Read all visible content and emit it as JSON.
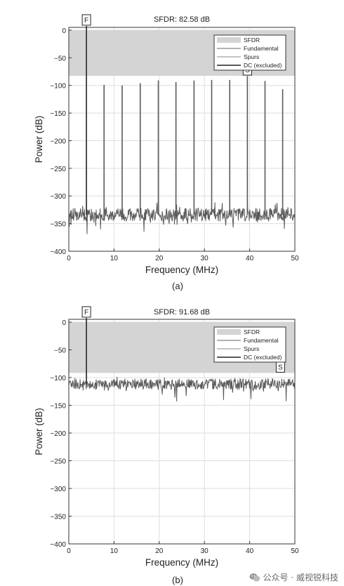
{
  "chart_data": [
    {
      "type": "line",
      "title": "SFDR:  82.58 dB",
      "caption": "(a)",
      "xlabel": "Frequency (MHz)",
      "ylabel": "Power (dB)",
      "xlim": [
        0,
        50
      ],
      "ylim": [
        -400,
        5
      ],
      "xticks": [
        0,
        10,
        20,
        30,
        40,
        50
      ],
      "yticks": [
        0,
        -50,
        -100,
        -150,
        -200,
        -250,
        -300,
        -350,
        -400
      ],
      "grid": true,
      "legend_position": "top-right",
      "legend": [
        "SFDR",
        "Fundamental",
        "Spurs",
        "DC (excluded)"
      ],
      "sfdr_band": [
        0,
        -82.58
      ],
      "noise_floor": {
        "mean": -334,
        "spread": 12
      },
      "fundamental": {
        "x": 3.9,
        "y": 0,
        "marker": "F"
      },
      "spurs": [
        {
          "x": 7.8,
          "y": -99
        },
        {
          "x": 11.8,
          "y": -100
        },
        {
          "x": 15.8,
          "y": -96
        },
        {
          "x": 19.8,
          "y": -91
        },
        {
          "x": 23.7,
          "y": -94
        },
        {
          "x": 27.7,
          "y": -91
        },
        {
          "x": 31.6,
          "y": -90
        },
        {
          "x": 35.6,
          "y": -90
        },
        {
          "x": 39.5,
          "y": -83
        },
        {
          "x": 43.4,
          "y": -92
        },
        {
          "x": 47.3,
          "y": -107
        }
      ],
      "spur_marker": {
        "x": 39.5,
        "label": "S"
      }
    },
    {
      "type": "line",
      "title": "SFDR:  91.68 dB",
      "caption": "(b)",
      "xlabel": "Frequency (MHz)",
      "ylabel": "Power (dB)",
      "xlim": [
        0,
        50
      ],
      "ylim": [
        -400,
        5
      ],
      "xticks": [
        0,
        10,
        20,
        30,
        40,
        50
      ],
      "yticks": [
        0,
        -50,
        -100,
        -150,
        -200,
        -250,
        -300,
        -350,
        -400
      ],
      "grid": true,
      "legend_position": "top-right",
      "legend": [
        "SFDR",
        "Fundamental",
        "Spurs",
        "DC (excluded)"
      ],
      "sfdr_band": [
        0,
        -91.68
      ],
      "noise_floor": {
        "mean": -112,
        "spread": 10
      },
      "fundamental": {
        "x": 3.9,
        "y": 0,
        "marker": "F"
      },
      "spurs": [],
      "spur_marker": {
        "x": 46.8,
        "label": "S"
      }
    }
  ],
  "watermark": {
    "text": "公众号 · 威视锐科技",
    "icon": "wechat-icon"
  },
  "colors": {
    "sfdr_band": "#d4d4d4",
    "trace": "#5a5a5a",
    "grid": "#dedede",
    "axis": "#333333"
  }
}
